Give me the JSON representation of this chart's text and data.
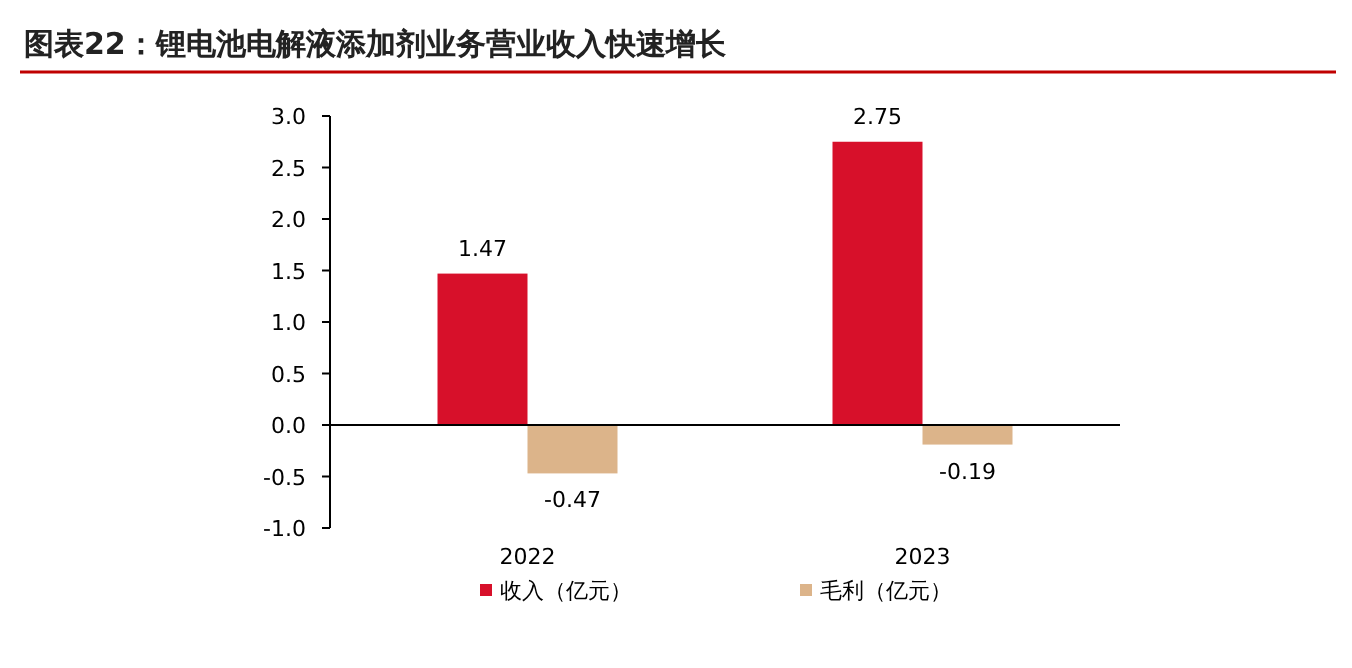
{
  "chart_data": {
    "type": "bar",
    "title": "图表22：锂电池电解液添加剂业务营业收入快速增长",
    "categories": [
      "2022",
      "2023"
    ],
    "series": [
      {
        "name": "收入（亿元）",
        "color": "#d7102a",
        "values": [
          1.47,
          2.75
        ]
      },
      {
        "name": "毛利（亿元）",
        "color": "#dcb48a",
        "values": [
          -0.47,
          -0.19
        ]
      }
    ],
    "ylim": [
      -1.0,
      3.0
    ],
    "yticks": [
      {
        "value": -1,
        "label": "-1.0"
      },
      {
        "value": -0.5,
        "label": "-0.5"
      },
      {
        "value": 0,
        "label": "0.0"
      },
      {
        "value": 0.5,
        "label": "0.5"
      },
      {
        "value": 1,
        "label": "1.0"
      },
      {
        "value": 1.5,
        "label": "1.5"
      },
      {
        "value": 2,
        "label": "2.0"
      },
      {
        "value": 2.5,
        "label": "2.5"
      },
      {
        "value": 3,
        "label": "3.0"
      }
    ],
    "data_labels": true,
    "legend": "bottom"
  }
}
